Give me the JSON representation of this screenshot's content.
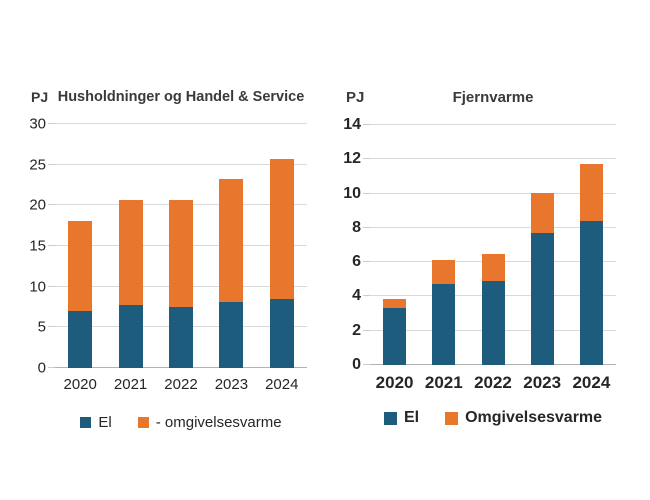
{
  "colors": {
    "el": "#1E5C7D",
    "omgivelsesvarme": "#E8762D",
    "gridline": "#D9D9D9",
    "axis_line": "#B3B3B3",
    "text": "#262626",
    "title": "#3A3A3A",
    "background": "#FFFFFF"
  },
  "chart_data": [
    {
      "type": "bar",
      "stacked": true,
      "title": "Husholdninger og Handel & Service",
      "unit_label": "PJ",
      "categories": [
        "2020",
        "2021",
        "2022",
        "2023",
        "2024"
      ],
      "series": [
        {
          "name": "El",
          "color": "#1E5C7D",
          "values": [
            7.0,
            7.8,
            7.5,
            8.1,
            8.5
          ]
        },
        {
          "name": "- omgivelsesvarme",
          "color": "#E8762D",
          "values": [
            11.1,
            12.9,
            13.2,
            15.2,
            17.2
          ]
        }
      ],
      "ylim": [
        0,
        30
      ],
      "yticks": [
        0,
        5,
        10,
        15,
        20,
        25,
        30
      ],
      "grid": true,
      "legend_position": "bottom"
    },
    {
      "type": "bar",
      "stacked": true,
      "title": "Fjernvarme",
      "unit_label": "PJ",
      "categories": [
        "2020",
        "2021",
        "2022",
        "2023",
        "2024"
      ],
      "series": [
        {
          "name": "El",
          "color": "#1E5C7D",
          "values": [
            3.3,
            4.75,
            4.9,
            7.7,
            8.4
          ]
        },
        {
          "name": "Omgivelsesvarme",
          "color": "#E8762D",
          "values": [
            0.55,
            1.4,
            1.6,
            2.35,
            3.35
          ]
        }
      ],
      "ylim": [
        0,
        14
      ],
      "yticks": [
        0,
        2,
        4,
        6,
        8,
        10,
        12,
        14
      ],
      "grid": true,
      "legend_position": "bottom"
    }
  ]
}
